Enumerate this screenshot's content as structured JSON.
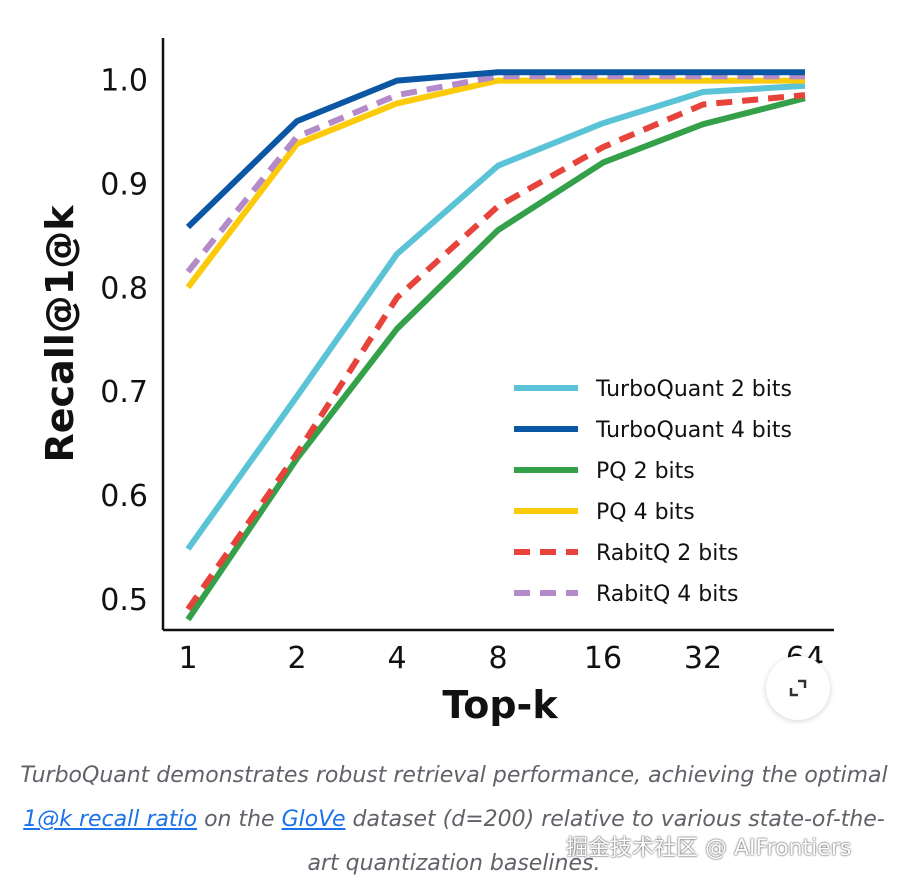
{
  "chart_data": {
    "type": "line",
    "title": "",
    "xlabel": "Top-k",
    "ylabel": "Recall@1@k",
    "x": [
      "1",
      "2",
      "4",
      "8",
      "16",
      "32",
      "64"
    ],
    "x_scale": "log2 (categorical)",
    "ylim": [
      0.47,
      1.04
    ],
    "yticks": [
      "0.5",
      "0.6",
      "0.7",
      "0.8",
      "0.9",
      "1.0"
    ],
    "grid": false,
    "legend_position": "bottom-right",
    "series": [
      {
        "name": "TurboQuant 2 bits",
        "color": "#5bc3d6",
        "dashed": false,
        "values": [
          0.548,
          0.695,
          0.832,
          0.917,
          0.958,
          0.988,
          0.994
        ]
      },
      {
        "name": "TurboQuant 4 bits",
        "color": "#0b57a4",
        "dashed": false,
        "values": [
          0.858,
          0.96,
          0.999,
          1.007,
          1.007,
          1.007,
          1.007
        ]
      },
      {
        "name": "PQ 2 bits",
        "color": "#34a04a",
        "dashed": false,
        "values": [
          0.48,
          0.635,
          0.76,
          0.855,
          0.92,
          0.957,
          0.982
        ]
      },
      {
        "name": "PQ 4 bits",
        "color": "#fbcb0a",
        "dashed": false,
        "values": [
          0.8,
          0.938,
          0.977,
          0.999,
          0.999,
          0.999,
          0.999
        ]
      },
      {
        "name": "RabitQ 2 bits",
        "color": "#e8433a",
        "dashed": true,
        "values": [
          0.49,
          0.64,
          0.79,
          0.878,
          0.935,
          0.976,
          0.985
        ]
      },
      {
        "name": "RabitQ 4 bits",
        "color": "#b58ac8",
        "dashed": true,
        "values": [
          0.815,
          0.945,
          0.985,
          1.003,
          1.003,
          1.003,
          1.003
        ]
      }
    ]
  },
  "caption": {
    "text_before": "TurboQuant demonstrates robust retrieval performance, achieving the optimal ",
    "link1": "1@k recall ratio",
    "text_middle": " on the ",
    "link2": "GloVe",
    "text_after": " dataset (d=200) relative to various state-of-the-art quantization baselines."
  },
  "watermark": "掘金技术社区 @ AIFrontiers",
  "icons": {
    "expand": "expand-icon"
  }
}
